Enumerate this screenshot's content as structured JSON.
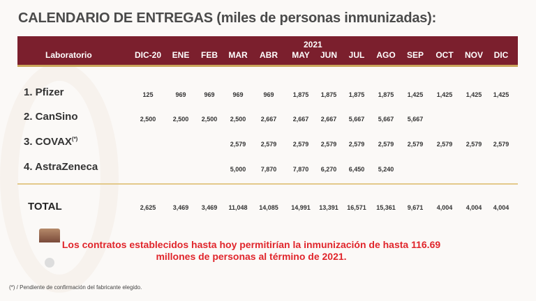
{
  "title": "CALENDARIO DE ENTREGAS (miles de personas inmunizadas):",
  "header": {
    "lab_label": "Laboratorio",
    "year": "2021",
    "months": [
      "DIC-20",
      "ENE",
      "FEB",
      "MAR",
      "ABR",
      "MAY",
      "JUN",
      "JUL",
      "AGO",
      "SEP",
      "OCT",
      "NOV",
      "DIC"
    ]
  },
  "rows": [
    {
      "label": "1. Pfizer",
      "sup": "",
      "values": [
        "125",
        "969",
        "969",
        "969",
        "969",
        "1,875",
        "1,875",
        "1,875",
        "1,875",
        "1,425",
        "1,425",
        "1,425",
        "1,425"
      ]
    },
    {
      "label": "2. CanSino",
      "sup": "",
      "values": [
        "2,500",
        "2,500",
        "2,500",
        "2,500",
        "2,667",
        "2,667",
        "2,667",
        "5,667",
        "5,667",
        "5,667",
        null,
        null,
        null
      ]
    },
    {
      "label": "3. COVAX",
      "sup": "(*)",
      "values": [
        null,
        null,
        null,
        "2,579",
        "2,579",
        "2,579",
        "2,579",
        "2,579",
        "2,579",
        "2,579",
        "2,579",
        "2,579",
        "2,579"
      ]
    },
    {
      "label": "4. AstraZeneca",
      "sup": "",
      "values": [
        null,
        null,
        null,
        "5,000",
        "7,870",
        "7,870",
        "6,270",
        "6,450",
        "5,240",
        null,
        null,
        null,
        null
      ]
    }
  ],
  "total": {
    "label": "TOTAL",
    "values": [
      "2,625",
      "3,469",
      "3,469",
      "11,048",
      "14,085",
      "14,991",
      "13,391",
      "16,571",
      "15,361",
      "9,671",
      "4,004",
      "4,004",
      "4,004"
    ]
  },
  "note": {
    "line1": "Los contratos establecidos hasta hoy permitirían la inmunización de hasta 116.69",
    "line2": "millones de personas al término de 2021."
  },
  "footnote": "(*) / Pendiente de confirmación del fabricante elegido."
}
